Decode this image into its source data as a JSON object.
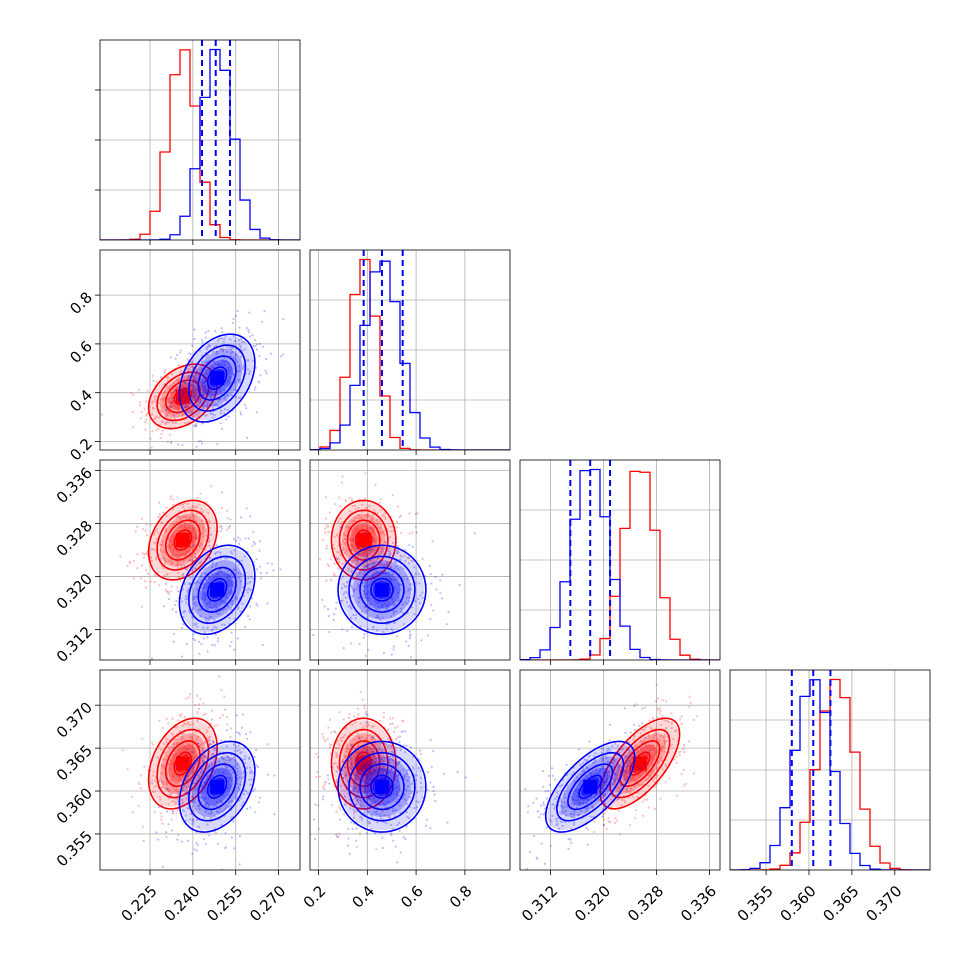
{
  "chart_data": {
    "type": "corner",
    "grid": true,
    "parameters": [
      {
        "ticks": [
          "0.225",
          "0.240",
          "0.255",
          "0.270"
        ],
        "tick_values": [
          0.225,
          0.24,
          0.255,
          0.27
        ],
        "range": [
          0.2075,
          0.2775
        ]
      },
      {
        "ticks": [
          "0.2",
          "0.4",
          "0.6",
          "0.8"
        ],
        "tick_values": [
          0.2,
          0.4,
          0.6,
          0.8
        ],
        "range": [
          0.165,
          0.985
        ]
      },
      {
        "ticks": [
          "0.312",
          "0.320",
          "0.328",
          "0.336"
        ],
        "tick_values": [
          0.312,
          0.32,
          0.328,
          0.336
        ],
        "range": [
          0.3074,
          0.3376
        ]
      },
      {
        "ticks": [
          "0.355",
          "0.360",
          "0.365",
          "0.370"
        ],
        "tick_values": [
          0.355,
          0.36,
          0.365,
          0.37
        ],
        "range": [
          0.3508,
          0.3741
        ]
      }
    ],
    "series": [
      {
        "color": "#ff0000",
        "mean": [
          0.2365,
          0.385,
          0.3255,
          0.3632
        ],
        "sd": [
          0.005,
          0.055,
          0.0025,
          0.0022
        ]
      },
      {
        "color": "#0000ff",
        "mean": [
          0.2485,
          0.46,
          0.318,
          0.3605
        ],
        "sd": [
          0.0055,
          0.075,
          0.0028,
          0.0022
        ]
      }
    ],
    "correlations": {
      "0-1": 0.35,
      "0-2": 0.3,
      "0-3": 0.35,
      "1-2": 0.0,
      "1-3": 0.0,
      "2-3": 0.65
    },
    "quantile_lines": {
      "color": "#0000ff",
      "values": [
        [
          0.2432,
          0.248,
          0.253
        ],
        [
          0.385,
          0.46,
          0.545
        ],
        [
          0.315,
          0.318,
          0.321
        ],
        [
          0.358,
          0.3605,
          0.3625
        ]
      ]
    }
  }
}
